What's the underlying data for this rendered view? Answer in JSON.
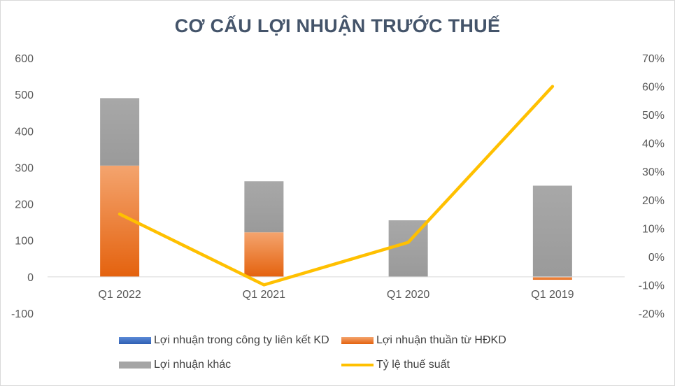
{
  "chart_data": {
    "type": "bar",
    "title": "CƠ CẤU LỢI NHUẬN TRƯỚC THUẾ",
    "stacked": true,
    "categories": [
      "Q1 2022",
      "Q1 2021",
      "Q1 2020",
      "Q1 2019"
    ],
    "series": [
      {
        "name": "Lợi nhuận trong công ty liên kết KD",
        "type": "bar",
        "axis": "left",
        "color": "#4472c4",
        "values": [
          0,
          0,
          0,
          0
        ]
      },
      {
        "name": "Lợi nhuận thuần từ HĐKD",
        "type": "bar",
        "axis": "left",
        "color": "#ed7d31",
        "values": [
          305,
          122,
          0,
          -8
        ]
      },
      {
        "name": "Lợi nhuận khác",
        "type": "bar",
        "axis": "left",
        "color": "#a5a5a5",
        "values": [
          185,
          140,
          155,
          250
        ]
      },
      {
        "name": "Tỷ lệ thuế suất",
        "type": "line",
        "axis": "right",
        "color": "#ffc000",
        "values": [
          0.15,
          -0.1,
          0.05,
          0.6
        ]
      }
    ],
    "left_axis": {
      "min": -100,
      "max": 600,
      "step": 100,
      "ticks": [
        "-100",
        "0",
        "100",
        "200",
        "300",
        "400",
        "500",
        "600"
      ]
    },
    "right_axis": {
      "min": -0.2,
      "max": 0.7,
      "step": 0.1,
      "ticks": [
        "-20%",
        "-10%",
        "0%",
        "10%",
        "20%",
        "30%",
        "40%",
        "50%",
        "60%",
        "70%"
      ]
    },
    "grid": false,
    "legend_position": "bottom"
  }
}
